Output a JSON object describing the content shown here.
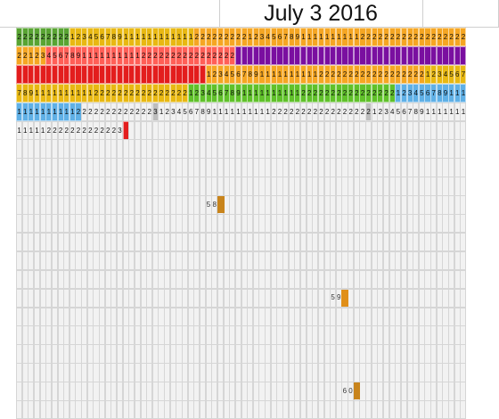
{
  "header": {
    "title": "July 3 2016"
  },
  "colors": {
    "green": "#58a432",
    "brightgreen": "#60c12a",
    "gold": "#e8b812",
    "orange": "#f5a623",
    "salmon": "#ff5f57",
    "purple": "#7a0fa0",
    "red": "#e31d1d",
    "blue": "#5fb0e6",
    "gray": "#bdbdbd",
    "empty": "#f2f2f2",
    "mark_orange": "#e08f19",
    "mark_darkorange": "#c8841c"
  },
  "grid": {
    "rows": [
      {
        "segments": [
          {
            "count": 9,
            "color": "green",
            "labels": [
              "2",
              "2",
              "2",
              "2",
              "2",
              "2",
              "2",
              "2",
              "2"
            ]
          },
          {
            "count": 21,
            "color": "gold",
            "labels": [
              "1",
              "2",
              "3",
              "4",
              "5",
              "6",
              "7",
              "8",
              "9",
              "1",
              "1",
              "1",
              "1",
              "1",
              "1",
              "1",
              "1",
              "1",
              "1",
              "1",
              "1"
            ]
          },
          {
            "count": 46,
            "color": "orange",
            "labels": [
              "2",
              "2",
              "2",
              "2",
              "2",
              "2",
              "2",
              "2",
              "2",
              "1",
              "2",
              "3",
              "4",
              "5",
              "6",
              "7",
              "8",
              "9",
              "1",
              "1",
              "1",
              "1",
              "1",
              "1",
              "1",
              "1",
              "1",
              "1",
              "2",
              "2",
              "2",
              "2",
              "2",
              "2",
              "2",
              "2",
              "2",
              "2",
              "2",
              "2",
              "2",
              "2",
              "2",
              "2",
              "2",
              "2"
            ]
          }
        ]
      },
      {
        "segments": [
          {
            "count": 5,
            "color": "orange",
            "labels": [
              "2",
              "2",
              "1",
              "2",
              "3"
            ]
          },
          {
            "count": 32,
            "color": "salmon",
            "labels": [
              "4",
              "5",
              "6",
              "7",
              "8",
              "9",
              "1",
              "1",
              "1",
              "1",
              "1",
              "1",
              "1",
              "1",
              "1",
              "1",
              "2",
              "2",
              "2",
              "2",
              "2",
              "2",
              "2",
              "2",
              "2",
              "2",
              "2",
              "2",
              "2",
              "2",
              "2",
              "2"
            ]
          },
          {
            "count": 39,
            "color": "purple",
            "labels": []
          }
        ]
      },
      {
        "segments": [
          {
            "count": 32,
            "color": "red",
            "labels": []
          },
          {
            "count": 37,
            "color": "orange",
            "labels": [
              "1",
              "2",
              "3",
              "4",
              "5",
              "6",
              "7",
              "8",
              "9",
              "1",
              "1",
              "1",
              "1",
              "1",
              "1",
              "1",
              "1",
              "1",
              "1",
              "2",
              "2",
              "2",
              "2",
              "2",
              "2",
              "2",
              "2",
              "2",
              "2",
              "2",
              "2",
              "2",
              "2",
              "2",
              "2",
              "2",
              "2"
            ]
          },
          {
            "count": 7,
            "color": "gold",
            "labels": [
              "1",
              "2",
              "3",
              "4",
              "5",
              "6",
              "7"
            ]
          }
        ]
      },
      {
        "segments": [
          {
            "count": 29,
            "color": "gold",
            "labels": [
              "7",
              "8",
              "9",
              "1",
              "1",
              "1",
              "1",
              "1",
              "1",
              "1",
              "1",
              "1",
              "1",
              "2",
              "2",
              "2",
              "2",
              "2",
              "2",
              "2",
              "2",
              "2",
              "2",
              "2",
              "2",
              "2",
              "2",
              "2",
              "2"
            ]
          },
          {
            "count": 35,
            "color": "brightgreen",
            "labels": [
              "1",
              "2",
              "3",
              "4",
              "5",
              "6",
              "7",
              "8",
              "9",
              "1",
              "1",
              "1",
              "1",
              "1",
              "1",
              "1",
              "1",
              "1",
              "1",
              "2",
              "2",
              "2",
              "2",
              "2",
              "2",
              "2",
              "2",
              "2",
              "2",
              "2",
              "2",
              "2",
              "2",
              "2",
              "2"
            ]
          },
          {
            "count": 12,
            "color": "blue",
            "labels": [
              "1",
              "2",
              "3",
              "4",
              "5",
              "6",
              "7",
              "8",
              "9",
              "1",
              "1",
              "1"
            ]
          }
        ]
      },
      {
        "segments": [
          {
            "count": 11,
            "color": "blue",
            "labels": [
              "1",
              "1",
              "1",
              "1",
              "1",
              "1",
              "1",
              "1",
              "1",
              "1",
              "2"
            ]
          },
          {
            "count": 12,
            "color": "empty",
            "labels": [
              "2",
              "2",
              "2",
              "2",
              "2",
              "2",
              "2",
              "2",
              "2",
              "2",
              "2",
              "2"
            ]
          },
          {
            "count": 1,
            "color": "gray",
            "labels": [
              "3"
            ]
          },
          {
            "count": 35,
            "color": "empty",
            "labels": [
              "1",
              "2",
              "3",
              "4",
              "5",
              "6",
              "7",
              "8",
              "9",
              "1",
              "1",
              "1",
              "1",
              "1",
              "1",
              "1",
              "1",
              "1",
              "1",
              "2",
              "2",
              "2",
              "2",
              "2",
              "2",
              "2",
              "2",
              "2",
              "2",
              "2",
              "2",
              "2",
              "2",
              "2",
              "2"
            ]
          },
          {
            "count": 1,
            "color": "gray",
            "labels": [
              "2"
            ]
          },
          {
            "count": 16,
            "color": "empty",
            "labels": [
              "1",
              "2",
              "3",
              "4",
              "5",
              "6",
              "7",
              "8",
              "9",
              "1",
              "1",
              "1",
              "1",
              "1",
              "1",
              "1"
            ]
          }
        ]
      },
      {
        "segments": [
          {
            "count": 18,
            "color": "empty",
            "labels": [
              "1",
              "1",
              "1",
              "1",
              "1",
              "2",
              "2",
              "2",
              "2",
              "2",
              "2",
              "2",
              "2",
              "2",
              "2",
              "2",
              "2",
              "3"
            ]
          },
          {
            "count": 1,
            "color": "red",
            "labels": [
              ""
            ]
          },
          {
            "count": 57,
            "color": "empty",
            "labels": []
          }
        ]
      }
    ],
    "total_rows": 21,
    "columns": 76,
    "marks": [
      {
        "row": 9,
        "col": 34,
        "label": "5 8",
        "color": "mark_darkorange"
      },
      {
        "row": 14,
        "col": 55,
        "label": "5 9",
        "color": "mark_orange"
      },
      {
        "row": 19,
        "col": 57,
        "label": "6 0",
        "color": "mark_darkorange"
      }
    ]
  }
}
